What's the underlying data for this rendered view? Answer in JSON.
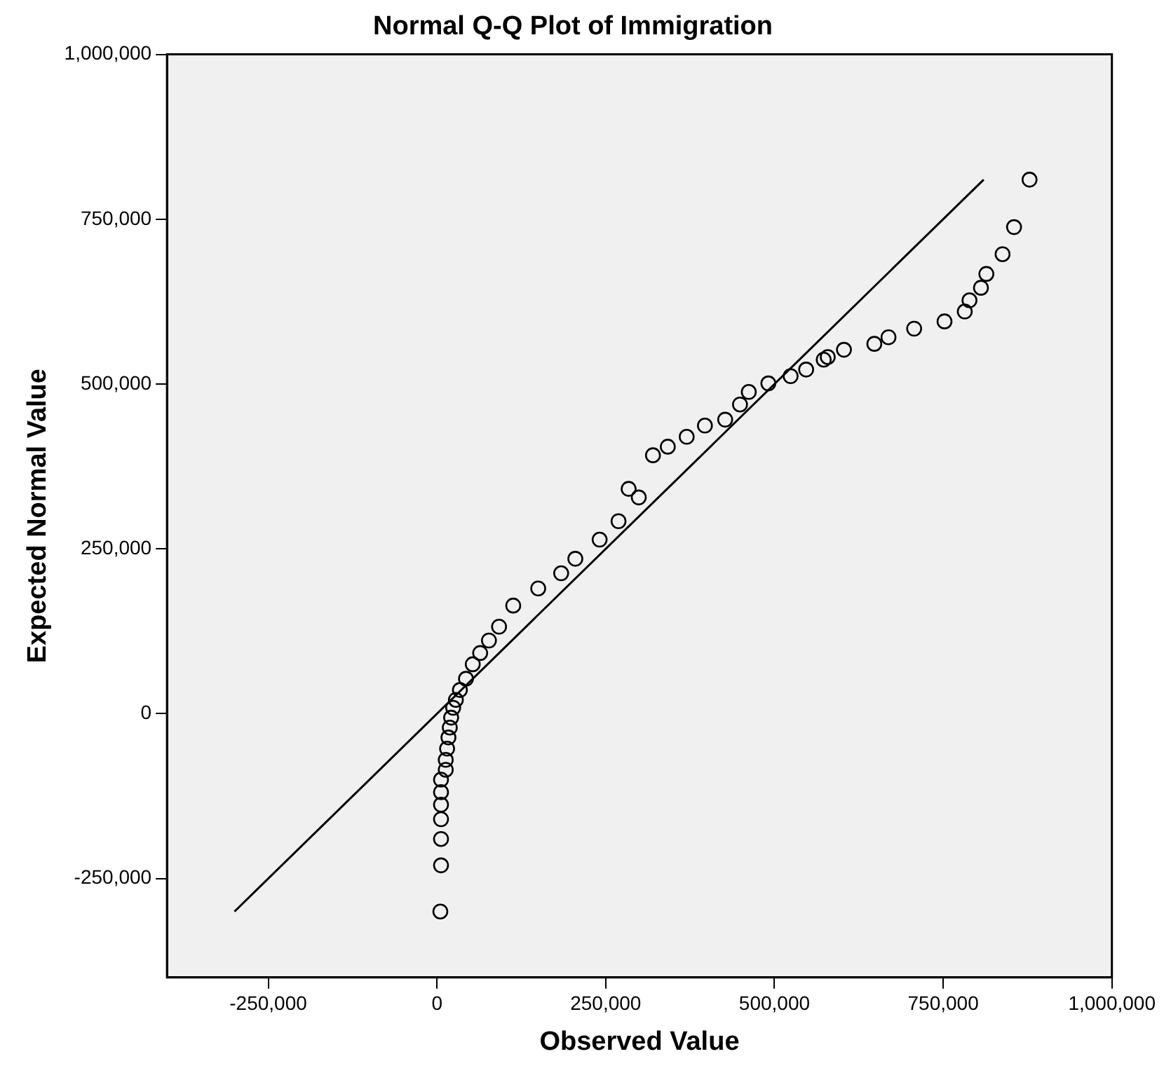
{
  "chart_data": {
    "type": "scatter",
    "title": "Normal Q-Q Plot of Immigration",
    "xlabel": "Observed Value",
    "ylabel": "Expected Normal Value",
    "xlim": [
      -400000,
      1000000
    ],
    "ylim": [
      -400000,
      1000000
    ],
    "xticks": [
      {
        "value": -250000,
        "label": "-250,000"
      },
      0,
      {
        "value": 250000,
        "label": "250,000"
      },
      {
        "value": 500000,
        "label": "500,000"
      },
      {
        "value": 750000,
        "label": "750,000"
      },
      {
        "value": 1000000,
        "label": "1,000,000"
      }
    ],
    "yticks": [
      {
        "value": -250000,
        "label": "-250,000"
      },
      0,
      {
        "value": 250000,
        "label": "250,000"
      },
      {
        "value": 500000,
        "label": "500,000"
      },
      {
        "value": 750000,
        "label": "750,000"
      },
      {
        "value": 1000000,
        "label": "1,000,000"
      }
    ],
    "grid": false,
    "legend": false,
    "marker": "circle",
    "series": [
      {
        "type": "scatter",
        "color": "#000000",
        "x": [
          5000,
          6000,
          6000,
          6000,
          6000,
          6000,
          6000,
          13000,
          13000,
          15000,
          17000,
          19000,
          21000,
          24000,
          28000,
          34000,
          43000,
          53000,
          64000,
          77000,
          92000,
          113000,
          150000,
          184000,
          205000,
          241000,
          269000,
          284000,
          299000,
          320000,
          342000,
          370000,
          397000,
          427000,
          449000,
          462000,
          491000,
          524000,
          547000,
          573000,
          579000,
          603000,
          648000,
          669000,
          707000,
          752000,
          782000,
          789000,
          806000,
          814000,
          838000,
          855000,
          878000
        ],
        "values": [
          -300000,
          -230000,
          -190000,
          -160000,
          -138000,
          -119000,
          -100000,
          -85000,
          -70000,
          -53000,
          -36000,
          -21000,
          -6000,
          9000,
          21000,
          36000,
          53000,
          75000,
          92000,
          111000,
          132000,
          164000,
          190000,
          213000,
          235000,
          264000,
          292000,
          341000,
          328000,
          392000,
          405000,
          420000,
          437000,
          446000,
          469000,
          488000,
          501000,
          512000,
          522000,
          537000,
          541000,
          552000,
          561000,
          571000,
          584000,
          595000,
          610000,
          627000,
          646000,
          667000,
          697000,
          738000,
          810000
        ]
      },
      {
        "type": "line",
        "color": "#000000",
        "marker": "none",
        "x": [
          -300000,
          810000
        ],
        "values": [
          -300000,
          810000
        ]
      }
    ]
  }
}
